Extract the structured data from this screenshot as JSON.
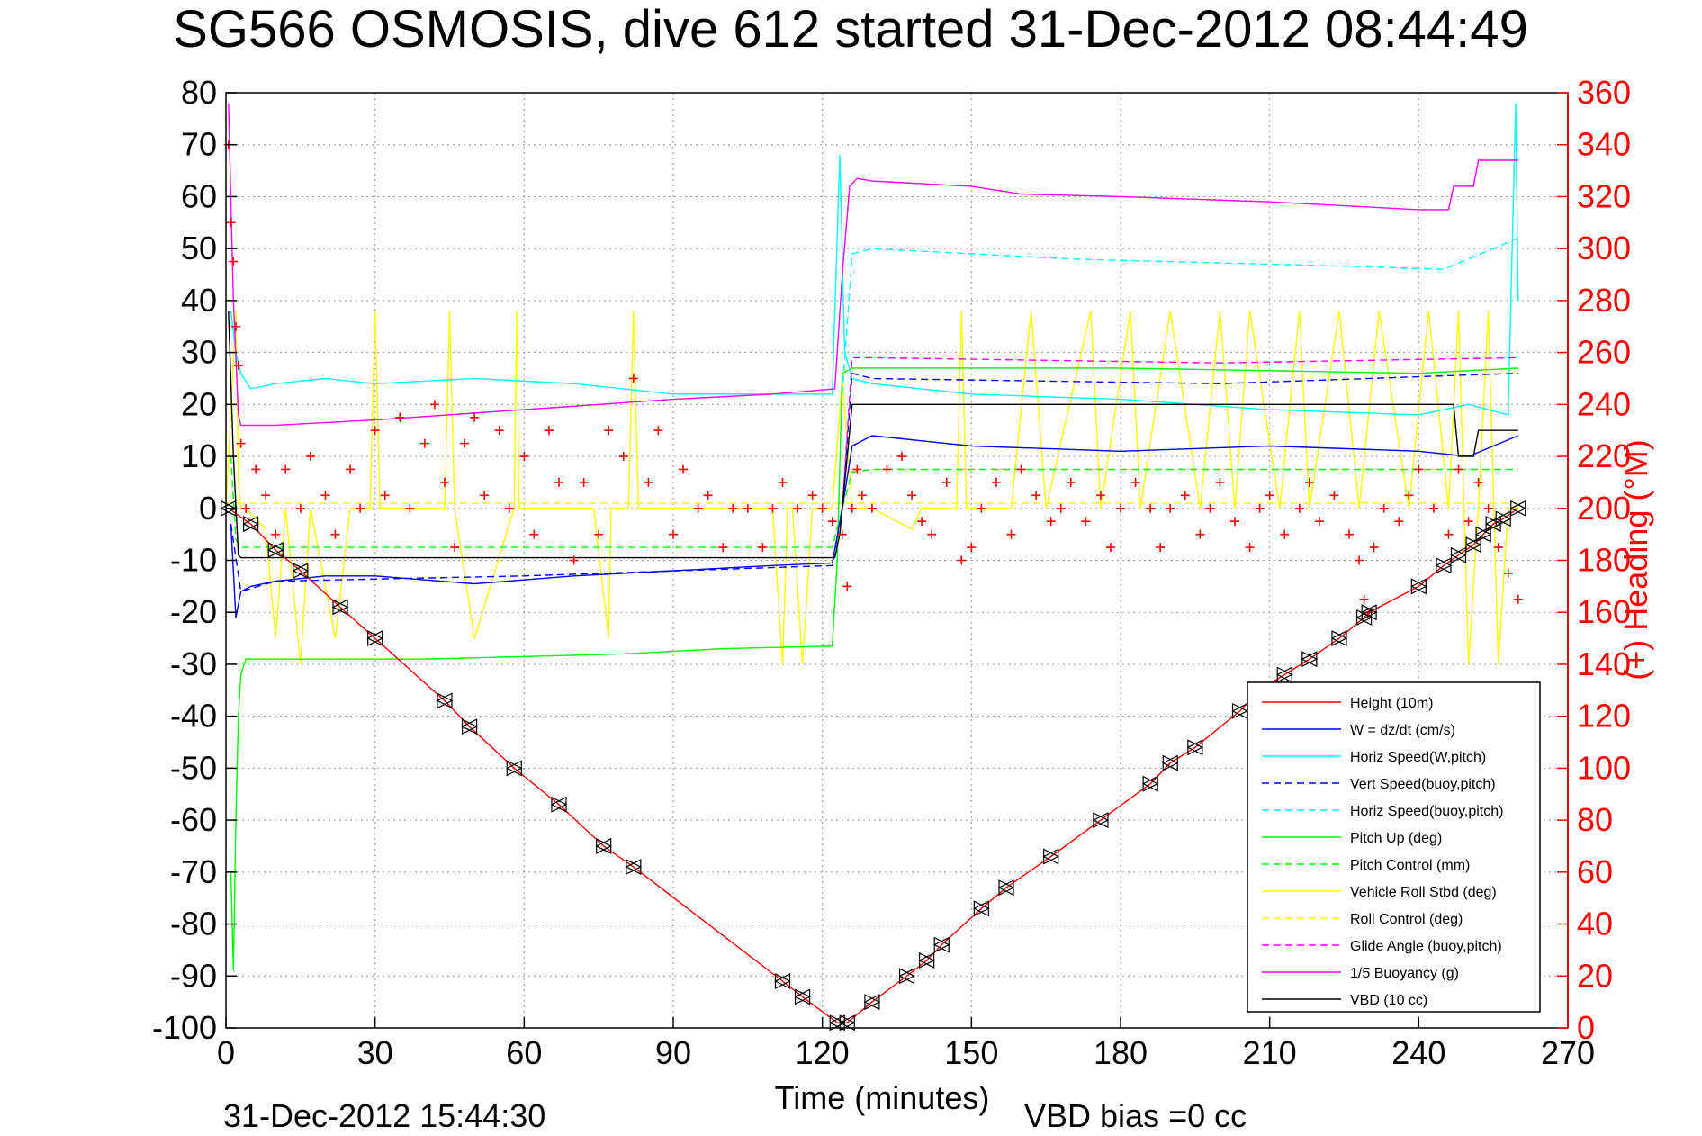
{
  "chart_data": {
    "type": "line",
    "title": "SG566 OSMOSIS, dive 612 started 31-Dec-2012 08:44:49",
    "xlabel": "Time (minutes)",
    "ylabel_right": "(+) Heading (°M)",
    "xlim": [
      0,
      270
    ],
    "ylim_left": [
      -100,
      80
    ],
    "ylim_right": [
      0,
      360
    ],
    "x_ticks": [
      0,
      30,
      60,
      90,
      120,
      150,
      180,
      210,
      240,
      270
    ],
    "y_ticks_left": [
      80,
      70,
      60,
      50,
      40,
      30,
      20,
      10,
      0,
      -10,
      -20,
      -30,
      -40,
      -50,
      -60,
      -70,
      -80,
      -90,
      -100
    ],
    "y_ticks_right": [
      360,
      340,
      320,
      300,
      280,
      260,
      240,
      220,
      200,
      180,
      160,
      140,
      120,
      100,
      80,
      60,
      40,
      20,
      0
    ],
    "grid": true,
    "legend_position": "lower-right",
    "bottom_left_text": "31-Dec-2012 15:44:30",
    "bottom_right_text": "VBD bias =0 cc",
    "colors": {
      "red": "#ff0000",
      "blue": "#0000ff",
      "cyan": "#00ffff",
      "green": "#00ff00",
      "yellow": "#ffff00",
      "magenta": "#ff00ff",
      "black": "#000000"
    },
    "legend": [
      {
        "name": "Height (10m)",
        "color": "#ff0000",
        "dash": false
      },
      {
        "name": "W = dz/dt (cm/s)",
        "color": "#0000ff",
        "dash": false
      },
      {
        "name": "Horiz Speed(W,pitch)",
        "color": "#00ffff",
        "dash": false
      },
      {
        "name": "Vert Speed(buoy,pitch)",
        "color": "#0000ff",
        "dash": true
      },
      {
        "name": "Horiz Speed(buoy,pitch)",
        "color": "#00ffff",
        "dash": true
      },
      {
        "name": "Pitch Up (deg)",
        "color": "#00ff00",
        "dash": false
      },
      {
        "name": "Pitch Control (mm)",
        "color": "#00ff00",
        "dash": true
      },
      {
        "name": "Vehicle Roll Stbd (deg)",
        "color": "#ffff00",
        "dash": false
      },
      {
        "name": "Roll Control (deg)",
        "color": "#ffff00",
        "dash": true
      },
      {
        "name": "Glide Angle (buoy,pitch)",
        "color": "#ff00ff",
        "dash": true
      },
      {
        "name": "1/5 Buoyancy (g)",
        "color": "#ff00ff",
        "dash": false
      },
      {
        "name": "VBD (10 cc)",
        "color": "#000000",
        "dash": false
      }
    ],
    "series": [
      {
        "name": "Height (10m)",
        "color": "#ff0000",
        "axis": "left",
        "x": [
          0.5,
          5,
          10,
          15,
          23,
          30,
          44,
          49,
          58,
          67,
          76,
          82,
          112,
          116,
          123,
          125,
          130,
          137,
          141,
          144,
          152,
          157,
          166,
          176,
          186,
          190,
          195,
          204,
          208,
          213,
          218,
          224,
          229,
          230,
          240,
          245,
          248,
          251,
          253,
          255,
          257,
          260
        ],
        "y": [
          0,
          -3,
          -8,
          -12,
          -19,
          -25,
          -37,
          -42,
          -50,
          -57,
          -65,
          -69,
          -91,
          -94,
          -99,
          -99,
          -95,
          -90,
          -87,
          -84,
          -77,
          -73,
          -67,
          -60,
          -53,
          -49,
          -46,
          -39,
          -35,
          -32,
          -29,
          -25,
          -21,
          -20,
          -15,
          -11,
          -9,
          -7,
          -5,
          -3,
          -2,
          0
        ]
      },
      {
        "name": "1/5 Buoyancy (g)",
        "color": "#ff00ff",
        "axis": "left",
        "x": [
          0.5,
          1.5,
          2.5,
          3,
          10,
          30,
          60,
          90,
          110,
          122.5,
          124,
          125.5,
          127,
          130,
          150,
          160,
          180,
          210,
          240,
          246,
          247,
          251,
          252,
          260
        ],
        "y": [
          78,
          40,
          18,
          16,
          16,
          17,
          19,
          21,
          22,
          23,
          45,
          62,
          63.5,
          63,
          62,
          60.5,
          60,
          59,
          57.5,
          57.5,
          62,
          62,
          67,
          67
        ]
      },
      {
        "name": "VBD (10 cc)",
        "color": "#000000",
        "axis": "left",
        "x": [
          0.5,
          1.5,
          2.5,
          3,
          60,
          122.5,
          123.5,
          125,
          126,
          130,
          247,
          248,
          251,
          252,
          260
        ],
        "y": [
          38,
          10,
          -9,
          -9.5,
          -9.5,
          -9.5,
          -5,
          10,
          20,
          20,
          20,
          10,
          10,
          15,
          15
        ]
      },
      {
        "name": "W = dz/dt (cm/s)",
        "color": "#0000ff",
        "axis": "left",
        "x": [
          1,
          2,
          3,
          5,
          10,
          20,
          30,
          50,
          70,
          90,
          110,
          122,
          124,
          126,
          130,
          150,
          180,
          210,
          240,
          250,
          255,
          260
        ],
        "y": [
          -3,
          -21,
          -16,
          -15,
          -14,
          -13,
          -13,
          -14.5,
          -13,
          -12,
          -11,
          -10.5,
          0,
          12,
          14,
          12,
          11,
          12,
          11,
          10,
          12,
          14
        ]
      },
      {
        "name": "Vert Speed(buoy,pitch)",
        "color": "#0000ff",
        "axis": "left",
        "x": [
          1,
          3,
          10,
          60,
          122,
          124,
          126,
          130,
          200,
          260
        ],
        "y": [
          -3,
          -16,
          -14,
          -13,
          -11,
          0,
          26,
          25,
          24,
          26
        ]
      },
      {
        "name": "Horiz Speed(W,pitch)",
        "color": "#00ffff",
        "axis": "left",
        "x": [
          1,
          2,
          3,
          5,
          10,
          20,
          30,
          50,
          70,
          90,
          110,
          122,
          123.5,
          124.5,
          126,
          130,
          150,
          180,
          210,
          240,
          250,
          258,
          259.5,
          260
        ],
        "y": [
          38,
          30,
          26,
          23,
          24,
          25,
          24,
          25,
          24,
          22,
          22,
          22,
          68,
          30,
          25,
          24,
          22,
          21,
          19,
          18,
          20,
          18,
          78,
          40
        ]
      },
      {
        "name": "Horiz Speed(buoy,pitch)",
        "color": "#00ffff",
        "axis": "left",
        "x": [
          124,
          126,
          130,
          150,
          170,
          190,
          210,
          230,
          245,
          250,
          255,
          260
        ],
        "y": [
          22,
          49,
          50,
          49,
          48,
          47.5,
          47,
          46.5,
          46,
          48,
          50,
          52
        ]
      },
      {
        "name": "Pitch Up (deg)",
        "color": "#00ff00",
        "axis": "left",
        "x": [
          1,
          1.5,
          2,
          2.5,
          3,
          4,
          5,
          10,
          20,
          40,
          60,
          80,
          100,
          122,
          123,
          124,
          126,
          130,
          180,
          240,
          260
        ],
        "y": [
          -70,
          -89,
          -60,
          -40,
          -32,
          -29,
          -29,
          -29,
          -29,
          -29,
          -28.5,
          -28,
          -27,
          -26.5,
          -10,
          26,
          27,
          27,
          27,
          26,
          27
        ]
      },
      {
        "name": "Pitch Control (mm)",
        "color": "#00ff00",
        "axis": "left",
        "x": [
          1,
          2,
          3,
          60,
          122,
          124,
          126,
          130,
          260
        ],
        "y": [
          10,
          -6,
          -7.5,
          -7.5,
          -7.5,
          0,
          7,
          7.5,
          7.5
        ]
      },
      {
        "name": "Glide Angle (buoy,pitch)",
        "color": "#ff00ff",
        "axis": "left",
        "x": [
          124,
          126,
          130,
          200,
          260
        ],
        "y": [
          0,
          29,
          29,
          28,
          29
        ]
      },
      {
        "name": "Vehicle Roll Stbd (deg)",
        "color": "#ffff00",
        "axis": "left",
        "x": [
          0,
          2,
          2.5,
          3,
          4,
          8,
          10,
          12,
          15,
          17,
          22,
          25,
          29,
          30,
          31,
          35,
          44,
          45,
          46,
          50,
          58,
          58.5,
          59,
          63,
          70,
          74,
          77,
          77.5,
          78,
          81,
          82,
          83,
          86,
          95,
          100,
          110,
          112,
          113,
          114,
          116,
          118,
          119,
          122,
          124,
          126,
          130,
          138,
          140,
          147,
          148,
          149,
          152,
          158,
          162,
          165,
          174,
          176,
          182,
          184,
          190,
          196,
          200,
          203,
          206,
          212,
          216,
          218,
          224,
          228,
          232,
          238,
          242,
          246,
          248,
          250,
          252,
          254,
          256,
          258,
          260
        ],
        "y": [
          0,
          38,
          5,
          0,
          0,
          -4,
          -25,
          0,
          -30,
          0,
          -25,
          0,
          0,
          38,
          0,
          0,
          0,
          38,
          0,
          -25,
          0,
          38,
          0,
          0,
          0,
          0,
          -25,
          0,
          0,
          0,
          38,
          0,
          0,
          0,
          0,
          0,
          -30,
          0,
          0,
          -30,
          0,
          0,
          0,
          25,
          0,
          0,
          -4,
          0,
          0,
          38,
          0,
          0,
          0,
          38,
          0,
          38,
          0,
          38,
          0,
          38,
          0,
          38,
          0,
          38,
          0,
          38,
          0,
          38,
          0,
          38,
          0,
          38,
          0,
          38,
          -30,
          0,
          38,
          -30,
          0,
          0
        ]
      },
      {
        "name": "Roll Control (deg)",
        "color": "#ffff00",
        "axis": "left",
        "x": [
          0,
          260
        ],
        "y": [
          1,
          1
        ]
      },
      {
        "name": "Heading",
        "color": "#ff0000",
        "axis": "right",
        "marker": "+",
        "x": [
          0.5,
          1,
          1.5,
          2,
          2.5,
          3,
          4,
          6,
          8,
          10,
          12,
          15,
          17,
          20,
          22,
          25,
          27,
          30,
          32,
          35,
          37,
          40,
          42,
          44,
          46,
          48,
          50,
          52,
          55,
          57,
          60,
          62,
          65,
          67,
          70,
          72,
          75,
          77,
          80,
          82,
          85,
          87,
          90,
          92,
          95,
          97,
          100,
          102,
          105,
          108,
          110,
          112,
          115,
          118,
          120,
          122,
          124,
          125,
          126,
          127,
          128,
          130,
          133,
          136,
          138,
          140,
          142,
          145,
          148,
          150,
          152,
          155,
          158,
          160,
          163,
          166,
          168,
          170,
          173,
          176,
          178,
          180,
          183,
          186,
          188,
          190,
          193,
          196,
          198,
          200,
          203,
          206,
          208,
          210,
          213,
          216,
          218,
          220,
          223,
          226,
          228,
          229,
          230,
          231,
          233,
          236,
          238,
          240,
          243,
          246,
          248,
          250,
          252,
          254,
          256,
          258,
          260
        ],
        "y": [
          340,
          310,
          295,
          270,
          255,
          225,
          200,
          215,
          205,
          190,
          215,
          200,
          220,
          205,
          190,
          215,
          200,
          230,
          205,
          235,
          200,
          225,
          240,
          210,
          185,
          225,
          235,
          205,
          230,
          200,
          220,
          190,
          230,
          210,
          180,
          210,
          190,
          230,
          220,
          250,
          210,
          230,
          190,
          215,
          200,
          205,
          185,
          200,
          200,
          185,
          200,
          210,
          200,
          205,
          200,
          195,
          190,
          170,
          200,
          215,
          205,
          200,
          215,
          220,
          205,
          195,
          190,
          210,
          180,
          185,
          200,
          210,
          190,
          215,
          205,
          195,
          200,
          210,
          195,
          205,
          185,
          200,
          210,
          200,
          185,
          200,
          205,
          190,
          200,
          210,
          195,
          185,
          200,
          205,
          190,
          200,
          210,
          195,
          205,
          190,
          180,
          165,
          160,
          185,
          200,
          195,
          205,
          215,
          200,
          190,
          215,
          195,
          210,
          200,
          185,
          175,
          165
        ]
      }
    ]
  }
}
